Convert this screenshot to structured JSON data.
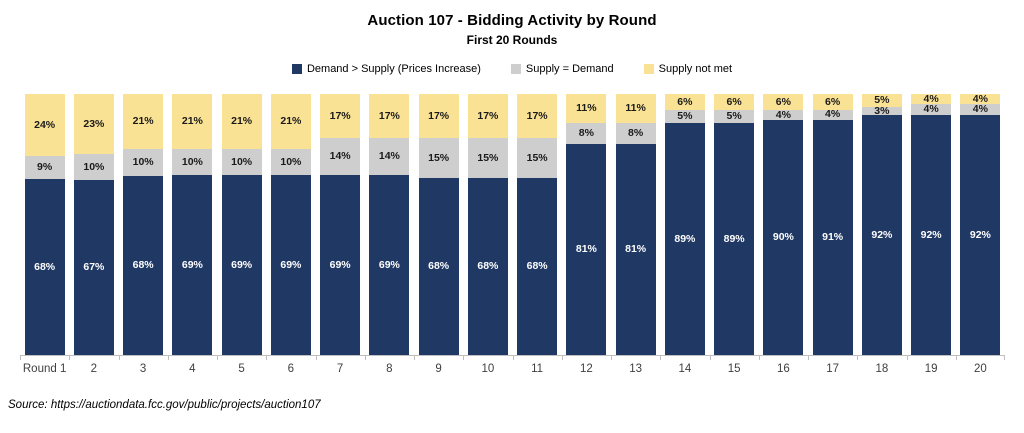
{
  "title": "Auction 107 - Bidding Activity by Round",
  "subtitle": "First 20 Rounds",
  "source": "Source:  https://auctiondata.fcc.gov/public/projects/auction107",
  "colors": {
    "navy": "#1F3864",
    "gray": "#CECECE",
    "yellow": "#FAE294",
    "axis": "#BFBFBF",
    "label_dark": "#1A1A1A",
    "label_light": "#FFFFFF"
  },
  "chart_data": {
    "type": "bar",
    "stacked": true,
    "percent": true,
    "title": "Auction 107 - Bidding Activity by Round",
    "subtitle": "First 20 Rounds",
    "legend_position": "top",
    "grid": false,
    "ylim": [
      0,
      100
    ],
    "value_suffix": "%",
    "categories": [
      "Round 1",
      "2",
      "3",
      "4",
      "5",
      "6",
      "7",
      "8",
      "9",
      "10",
      "11",
      "12",
      "13",
      "14",
      "15",
      "16",
      "17",
      "18",
      "19",
      "20"
    ],
    "series": [
      {
        "name": "Demand > Supply (Prices Increase)",
        "color": "#1F3864",
        "label_color": "#FFFFFF",
        "values": [
          68,
          67,
          68,
          69,
          69,
          69,
          69,
          69,
          68,
          68,
          68,
          81,
          81,
          89,
          89,
          90,
          91,
          92,
          92,
          92
        ]
      },
      {
        "name": "Supply = Demand",
        "color": "#CECECE",
        "label_color": "#1A1A1A",
        "values": [
          9,
          10,
          10,
          10,
          10,
          10,
          14,
          14,
          15,
          15,
          15,
          8,
          8,
          5,
          5,
          4,
          4,
          3,
          4,
          4
        ]
      },
      {
        "name": "Supply not met",
        "color": "#FAE294",
        "label_color": "#1A1A1A",
        "values": [
          24,
          23,
          21,
          21,
          21,
          21,
          17,
          17,
          17,
          17,
          17,
          11,
          11,
          6,
          6,
          6,
          6,
          5,
          4,
          4
        ]
      }
    ]
  }
}
